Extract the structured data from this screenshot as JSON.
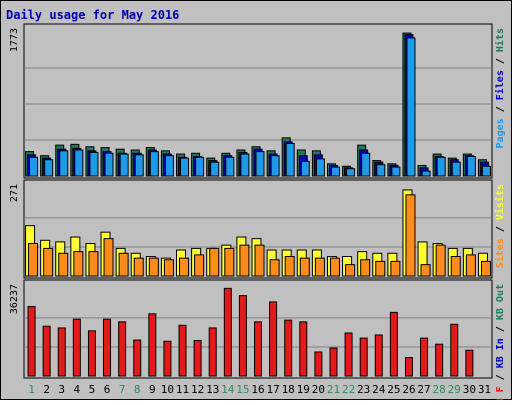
{
  "chart_data": {
    "type": "bar",
    "title": "Daily usage for May 2016",
    "colors": {
      "frame_bg": "#c0c0c0",
      "panel_bg": "#c0c0c0",
      "title": "#0000aa",
      "grid": "#808080",
      "hits": "#1e7a5a",
      "files": "#1e9be8",
      "pages": "#0000cc",
      "visits": "#ffff33",
      "sites": "#ff8c1a",
      "kbf": "#e41a1a",
      "weekend": "#2e8b57",
      "weekday": "#000000"
    },
    "days": [
      "1",
      "2",
      "3",
      "4",
      "5",
      "6",
      "7",
      "8",
      "9",
      "10",
      "11",
      "12",
      "13",
      "14",
      "15",
      "16",
      "17",
      "18",
      "19",
      "20",
      "21",
      "22",
      "23",
      "24",
      "25",
      "26",
      "27",
      "28",
      "29",
      "30",
      "31"
    ],
    "weekend_days": [
      1,
      7,
      8,
      14,
      15,
      21,
      22,
      28,
      29
    ],
    "panels": [
      {
        "key": "top",
        "max_label": "1773",
        "ymax": 1773,
        "right_label": [
          {
            "text": "Pages",
            "color": "#1e9be8"
          },
          {
            "text": " / ",
            "color": "#000000"
          },
          {
            "text": "Files",
            "color": "#0000cc"
          },
          {
            "text": " / ",
            "color": "#000000"
          },
          {
            "text": "Hits",
            "color": "#1e7a5a"
          }
        ],
        "series": [
          {
            "name": "Hits",
            "color": "#1e7a5a",
            "values": [
              300,
              250,
              380,
              390,
              360,
              350,
              330,
              320,
              350,
              310,
              270,
              280,
              220,
              280,
              320,
              360,
              310,
              470,
              320,
              310,
              150,
              120,
              380,
              190,
              150,
              1760,
              130,
              270,
              220,
              270,
              200
            ]
          },
          {
            "name": "Files",
            "color": "#0000cc",
            "values": [
              260,
              220,
              330,
              340,
              310,
              300,
              280,
              280,
              320,
              270,
              230,
              240,
              190,
              250,
              290,
              330,
              270,
              420,
              250,
              260,
              130,
              100,
              320,
              170,
              130,
              1740,
              100,
              240,
              200,
              250,
              170
            ]
          },
          {
            "name": "Pages",
            "color": "#1e9be8",
            "values": [
              230,
              200,
              310,
              320,
              290,
              280,
              270,
              260,
              300,
              250,
              220,
              230,
              170,
              230,
              270,
              300,
              250,
              400,
              180,
              210,
              110,
              90,
              280,
              140,
              110,
              1700,
              60,
              230,
              170,
              240,
              120
            ]
          }
        ]
      },
      {
        "key": "middle",
        "max_label": "271",
        "ymax": 271,
        "right_label": [
          {
            "text": "Sites",
            "color": "#ff8c1a"
          },
          {
            "text": " / ",
            "color": "#000000"
          },
          {
            "text": "Visits",
            "color": "#ffff33"
          }
        ],
        "series": [
          {
            "name": "Visits",
            "color": "#ffff33",
            "values": [
              155,
              110,
              105,
              120,
              100,
              135,
              85,
              70,
              60,
              55,
              80,
              85,
              85,
              95,
              120,
              115,
              80,
              80,
              80,
              80,
              60,
              60,
              75,
              70,
              70,
              265,
              105,
              100,
              85,
              85,
              70
            ]
          },
          {
            "name": "Sites",
            "color": "#ff8c1a",
            "values": [
              100,
              85,
              70,
              75,
              75,
              115,
              70,
              55,
              55,
              50,
              55,
              65,
              85,
              85,
              95,
              95,
              50,
              60,
              55,
              55,
              55,
              35,
              50,
              45,
              45,
              250,
              35,
              95,
              60,
              65,
              45
            ]
          }
        ]
      },
      {
        "key": "bottom",
        "max_label": "36237",
        "ymax": 36237,
        "right_label": [
          {
            "text": "KB F",
            "color": "#e41a1a"
          },
          {
            "text": " / ",
            "color": "#000000"
          },
          {
            "text": "KB In",
            "color": "#0000cc"
          },
          {
            "text": " / ",
            "color": "#000000"
          },
          {
            "text": "KB Out",
            "color": "#1e7a5a"
          }
        ],
        "series": [
          {
            "name": "KB F",
            "color": "#e41a1a",
            "values": [
              28600,
              20500,
              19800,
              23400,
              18600,
              23400,
              22300,
              14800,
              25600,
              14300,
              20900,
              14600,
              19800,
              36100,
              33100,
              22300,
              30500,
              23000,
              22300,
              9900,
              11500,
              17700,
              15600,
              16900,
              26200,
              7600,
              15600,
              13100,
              21300,
              10600,
              0
            ]
          }
        ]
      }
    ]
  }
}
